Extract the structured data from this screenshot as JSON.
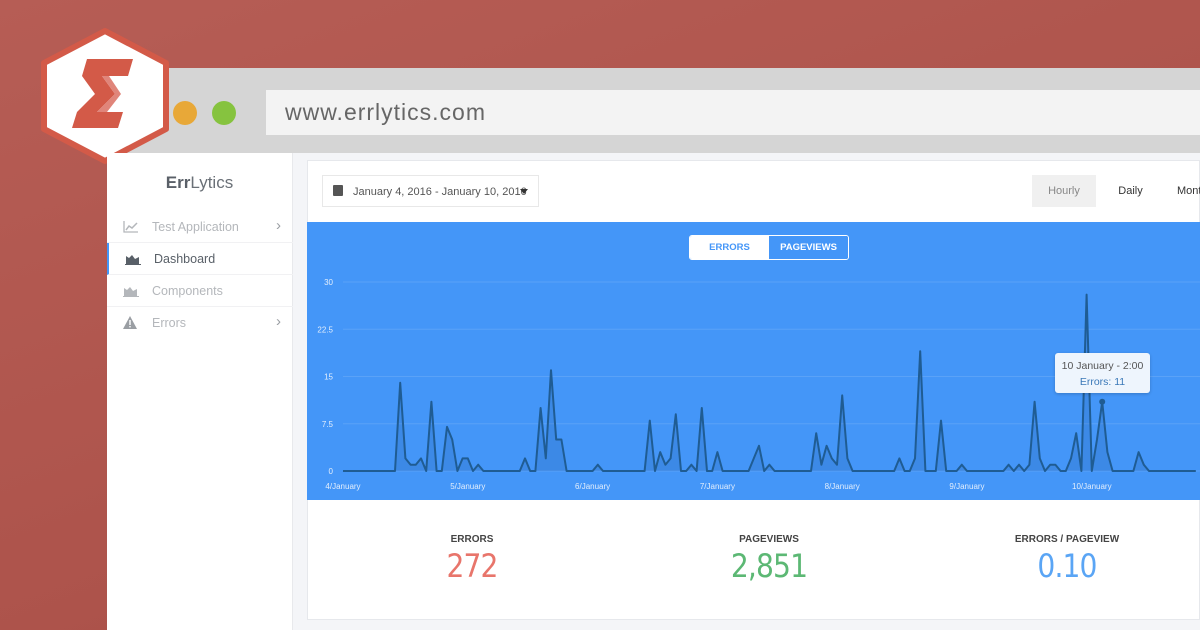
{
  "browser": {
    "url": "www.errlytics.com",
    "dots": [
      {
        "color": "#e8a838"
      },
      {
        "color": "#86c33f"
      }
    ]
  },
  "logo": {
    "letter": "Σ",
    "color": "#d35a48"
  },
  "sidebar": {
    "brand_bold": "Err",
    "brand_rest": "Lytics",
    "items": [
      {
        "label": "Test Application",
        "icon": "line-chart-icon",
        "has_chevron": true
      },
      {
        "label": "Dashboard",
        "icon": "area-chart-icon",
        "active": true
      },
      {
        "label": "Components",
        "icon": "area-chart-icon"
      },
      {
        "label": "Errors",
        "icon": "warning-icon",
        "has_chevron": true
      }
    ]
  },
  "toolbar": {
    "date_range": "January 4, 2016 - January 10, 2016",
    "granularity": [
      {
        "label": "Hourly",
        "active": true
      },
      {
        "label": "Daily"
      },
      {
        "label": "Monthly"
      }
    ]
  },
  "chart_toggle": {
    "errors": "ERRORS",
    "pageviews": "PAGEVIEWS",
    "selected": "ERRORS"
  },
  "chart_data": {
    "type": "area",
    "x_interval": "hourly",
    "x_tick_labels": [
      "4/January",
      "5/January",
      "6/January",
      "7/January",
      "8/January",
      "9/January",
      "10/January"
    ],
    "y_tick_labels": [
      "0",
      "7.5",
      "15",
      "22.5",
      "30"
    ],
    "ylim": [
      0,
      30
    ],
    "grid": true,
    "background": "#4496f8",
    "line_color": "#1f5c93",
    "values": [
      0,
      0,
      0,
      0,
      0,
      0,
      0,
      0,
      0,
      0,
      0,
      14,
      2,
      1,
      1,
      2,
      0,
      11,
      0,
      0,
      7,
      5,
      0,
      2,
      2,
      0,
      1,
      0,
      0,
      0,
      0,
      0,
      0,
      0,
      0,
      2,
      0,
      0,
      10,
      2,
      16,
      5,
      5,
      0,
      0,
      0,
      0,
      0,
      0,
      1,
      0,
      0,
      0,
      0,
      0,
      0,
      0,
      0,
      0,
      8,
      0,
      3,
      1,
      2,
      9,
      0,
      0,
      1,
      0,
      10,
      0,
      0,
      3,
      0,
      0,
      0,
      0,
      0,
      0,
      2,
      4,
      0,
      1,
      0,
      0,
      0,
      0,
      0,
      0,
      0,
      0,
      6,
      1,
      4,
      2,
      1,
      12,
      2,
      0,
      0,
      0,
      0,
      0,
      0,
      0,
      0,
      0,
      2,
      0,
      0,
      2,
      19,
      0,
      0,
      0,
      8,
      0,
      0,
      0,
      1,
      0,
      0,
      0,
      0,
      0,
      0,
      0,
      0,
      1,
      0,
      1,
      0,
      1,
      11,
      2,
      0,
      1,
      1,
      0,
      0,
      2,
      6,
      0,
      28,
      0,
      5,
      11,
      3,
      0,
      0,
      0,
      0,
      0,
      3,
      1,
      0,
      0,
      0,
      0,
      0,
      0,
      0,
      0,
      0,
      0
    ],
    "tooltip": {
      "title": "10 January - 2:00",
      "text": "Errors: 11",
      "index": 146
    }
  },
  "stats": [
    {
      "label": "ERRORS",
      "value": "272",
      "color": "#e8756b"
    },
    {
      "label": "PAGEVIEWS",
      "value": "2,851",
      "color": "#5cb874"
    },
    {
      "label": "ERRORS / PAGEVIEW",
      "value": "0.10",
      "color": "#5aa5f5"
    }
  ]
}
